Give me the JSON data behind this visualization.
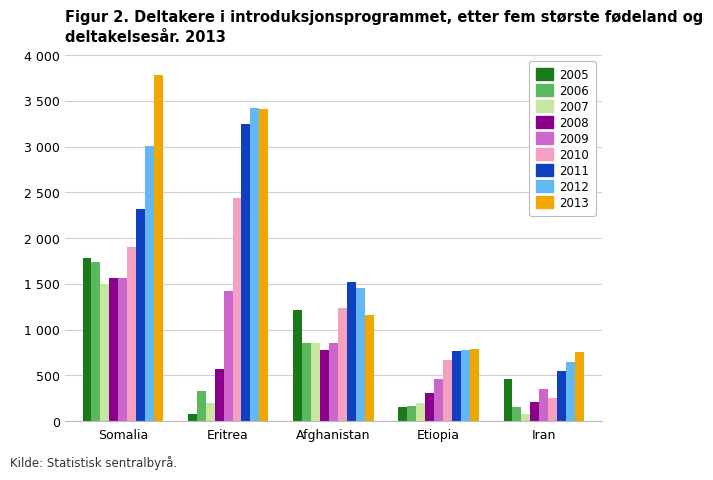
{
  "title_line1": "Figur 2. Deltakere i introduksjonsprogrammet, etter fem største fødeland og",
  "title_line2": "deltakelsesår. 2013",
  "categories": [
    "Somalia",
    "Eritrea",
    "Afghanistan",
    "Etiopia",
    "Iran"
  ],
  "years": [
    "2005",
    "2006",
    "2007",
    "2008",
    "2009",
    "2010",
    "2011",
    "2012",
    "2013"
  ],
  "colors": [
    "#1a7a1a",
    "#5cb85c",
    "#c8e6a0",
    "#8B008B",
    "#cc66cc",
    "#f4a0c0",
    "#1040c0",
    "#62b8f0",
    "#f0a800"
  ],
  "data": {
    "Somalia": [
      1780,
      1740,
      1500,
      1560,
      1560,
      1900,
      2320,
      3010,
      3780
    ],
    "Eritrea": [
      80,
      330,
      200,
      570,
      1420,
      2440,
      3250,
      3420,
      3410
    ],
    "Afghanistan": [
      1220,
      860,
      850,
      780,
      850,
      1240,
      1520,
      1460,
      1160
    ],
    "Etiopia": [
      155,
      165,
      200,
      310,
      460,
      670,
      770,
      780,
      790
    ],
    "Iran": [
      460,
      160,
      80,
      210,
      350,
      250,
      550,
      650,
      760
    ]
  },
  "ylim": [
    0,
    4000
  ],
  "yticks": [
    0,
    500,
    1000,
    1500,
    2000,
    2500,
    3000,
    3500,
    4000
  ],
  "source": "Kilde: Statistisk sentralbyrå.",
  "background_color": "#ffffff",
  "grid_color": "#d0d0d0",
  "legend_fontsize": 8.5,
  "title_fontsize": 10.5
}
